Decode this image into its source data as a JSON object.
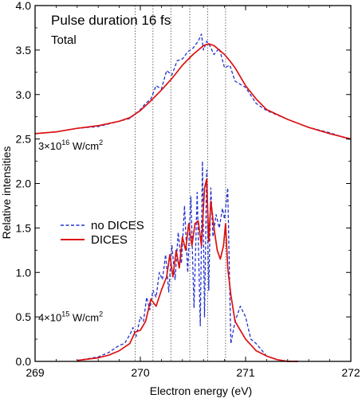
{
  "chart_data": {
    "type": "line",
    "title": "Pulse duration 16 fs",
    "subtitle": "Total",
    "xlabel": "Electron energy (eV)",
    "ylabel": "Relative intensities",
    "xlim": [
      269,
      272
    ],
    "ylim": [
      0,
      4
    ],
    "x_ticks": [
      "269",
      "270",
      "271",
      "272"
    ],
    "y_ticks": [
      "0.0",
      "0.5",
      "1.0",
      "1.5",
      "2.0",
      "2.5",
      "3.0",
      "3.5",
      "4.0"
    ],
    "grid": false,
    "legend_position": "middle-left",
    "vlines": [
      269.95,
      270.12,
      270.29,
      270.47,
      270.64,
      270.81
    ],
    "annotations": [
      {
        "base": "3",
        "times": "×",
        "mantissa": "10",
        "exp": "16",
        "unit": " W/cm",
        "unit_exp": "2",
        "x": 269.03,
        "y": 2.38
      },
      {
        "base": "4",
        "times": "×",
        "mantissa": "10",
        "exp": "15",
        "unit": " W/cm",
        "unit_exp": "2",
        "x": 269.03,
        "y": 0.45
      }
    ],
    "series": [
      {
        "name": "no DICES",
        "color": "#2233cc",
        "style": "dashed",
        "x": [
          269.0,
          269.2,
          269.4,
          269.6,
          269.8,
          269.9,
          270.0,
          270.05,
          270.1,
          270.15,
          270.2,
          270.25,
          270.3,
          270.35,
          270.4,
          270.45,
          270.5,
          270.55,
          270.58,
          270.6,
          270.63,
          270.66,
          270.7,
          270.75,
          270.8,
          270.85,
          270.9,
          271.0,
          271.1,
          271.2,
          271.4,
          271.6,
          271.8,
          272.0
        ],
        "y": [
          2.56,
          2.58,
          2.62,
          2.64,
          2.7,
          2.73,
          2.83,
          2.9,
          2.95,
          3.1,
          3.06,
          3.27,
          3.22,
          3.38,
          3.4,
          3.48,
          3.52,
          3.6,
          3.68,
          3.5,
          3.6,
          3.55,
          3.45,
          3.52,
          3.3,
          3.33,
          3.15,
          3.08,
          2.9,
          2.82,
          2.72,
          2.63,
          2.57,
          2.49
        ]
      },
      {
        "name": "DICES",
        "color": "#dd1111",
        "style": "solid",
        "x": [
          269.0,
          269.2,
          269.4,
          269.6,
          269.8,
          269.9,
          270.0,
          270.1,
          270.2,
          270.3,
          270.4,
          270.5,
          270.55,
          270.6,
          270.65,
          270.7,
          270.75,
          270.8,
          270.85,
          270.9,
          271.0,
          271.1,
          271.2,
          271.4,
          271.6,
          271.8,
          272.0
        ],
        "y": [
          2.56,
          2.58,
          2.62,
          2.65,
          2.7,
          2.74,
          2.82,
          2.93,
          3.05,
          3.18,
          3.33,
          3.45,
          3.5,
          3.55,
          3.57,
          3.55,
          3.5,
          3.45,
          3.38,
          3.3,
          3.1,
          2.95,
          2.83,
          2.72,
          2.63,
          2.56,
          2.5
        ]
      },
      {
        "name": "no DICES",
        "color": "#2233cc",
        "style": "dashed",
        "x": [
          269.4,
          269.6,
          269.7,
          269.8,
          269.85,
          269.9,
          269.93,
          269.96,
          270.0,
          270.03,
          270.06,
          270.09,
          270.12,
          270.15,
          270.18,
          270.21,
          270.24,
          270.27,
          270.3,
          270.33,
          270.36,
          270.39,
          270.42,
          270.45,
          270.48,
          270.51,
          270.54,
          270.57,
          270.59,
          270.61,
          270.63,
          270.65,
          270.67,
          270.69,
          270.72,
          270.75,
          270.78,
          270.8,
          270.83,
          270.86,
          270.9,
          270.95,
          271.0,
          271.05,
          271.1,
          271.2,
          271.3,
          271.4,
          271.5
        ],
        "y": [
          0.01,
          0.05,
          0.1,
          0.18,
          0.2,
          0.3,
          0.38,
          0.28,
          0.5,
          0.45,
          0.72,
          0.58,
          0.8,
          0.72,
          1.0,
          0.92,
          1.2,
          0.78,
          1.3,
          0.92,
          1.45,
          1.1,
          1.75,
          1.0,
          1.85,
          0.6,
          1.9,
          0.4,
          2.25,
          0.5,
          2.15,
          0.8,
          1.95,
          1.4,
          1.65,
          1.5,
          1.72,
          1.6,
          1.95,
          0.2,
          0.45,
          0.62,
          0.5,
          0.25,
          0.2,
          0.06,
          0.02,
          0.0,
          0.0
        ]
      },
      {
        "name": "DICES",
        "color": "#dd1111",
        "style": "solid",
        "x": [
          269.4,
          269.6,
          269.7,
          269.8,
          269.9,
          269.95,
          270.0,
          270.05,
          270.1,
          270.15,
          270.2,
          270.25,
          270.28,
          270.31,
          270.34,
          270.37,
          270.4,
          270.43,
          270.46,
          270.49,
          270.52,
          270.55,
          270.58,
          270.61,
          270.63,
          270.65,
          270.67,
          270.7,
          270.73,
          270.76,
          270.79,
          270.81,
          270.83,
          270.86,
          270.9,
          270.95,
          271.0,
          271.1,
          271.2,
          271.3,
          271.4,
          271.5
        ],
        "y": [
          0.01,
          0.04,
          0.07,
          0.12,
          0.2,
          0.33,
          0.35,
          0.45,
          0.7,
          0.62,
          0.8,
          0.95,
          1.2,
          0.95,
          1.25,
          1.05,
          1.4,
          1.25,
          1.55,
          1.3,
          1.55,
          1.58,
          1.3,
          1.95,
          2.05,
          1.35,
          1.8,
          1.5,
          1.25,
          1.15,
          1.3,
          1.55,
          1.05,
          0.75,
          0.45,
          0.35,
          0.25,
          0.12,
          0.06,
          0.02,
          0.0,
          0.0
        ]
      }
    ]
  }
}
